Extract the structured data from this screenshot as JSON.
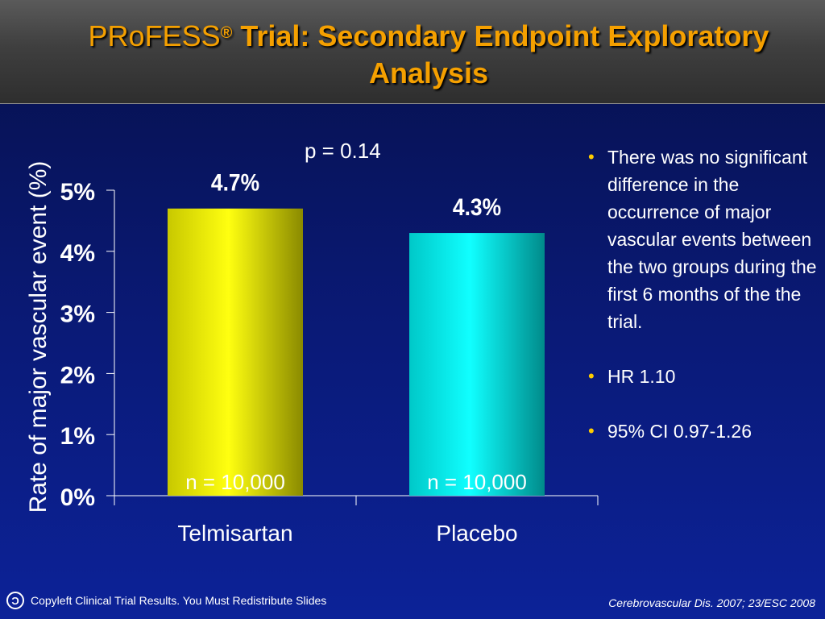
{
  "slide": {
    "title_prefix": "PRoFESS",
    "title_mark": "®",
    "title_rest": " Trial: Secondary Endpoint Exploratory Analysis",
    "p_value": "p = 0.14",
    "bullets": [
      "There was no significant difference in the occurrence of major vascular events between the two groups during the first 6 months of the the trial.",
      "HR 1.10",
      "95% CI 0.97-1.26"
    ],
    "footer_left": "Copyleft Clinical Trial Results. You Must Redistribute Slides",
    "footer_right": "Cerebrovascular Dis. 2007; 23/ESC 2008",
    "icons": {
      "copyleft": "copyleft-icon"
    }
  },
  "chart_data": {
    "type": "bar",
    "categories": [
      "Telmisartan",
      "Placebo"
    ],
    "values": [
      4.7,
      4.3
    ],
    "value_labels": [
      "4.7%",
      "4.3%"
    ],
    "bar_annotations": [
      "n = 10,000",
      "n = 10,000"
    ],
    "ylabel": "Rate of major vascular event  (%)",
    "yticks": [
      "0%",
      "1%",
      "2%",
      "3%",
      "4%",
      "5%"
    ],
    "ylim": [
      0,
      5
    ],
    "grid": false,
    "colors": [
      "#f0f000",
      "#00f0f0"
    ]
  }
}
